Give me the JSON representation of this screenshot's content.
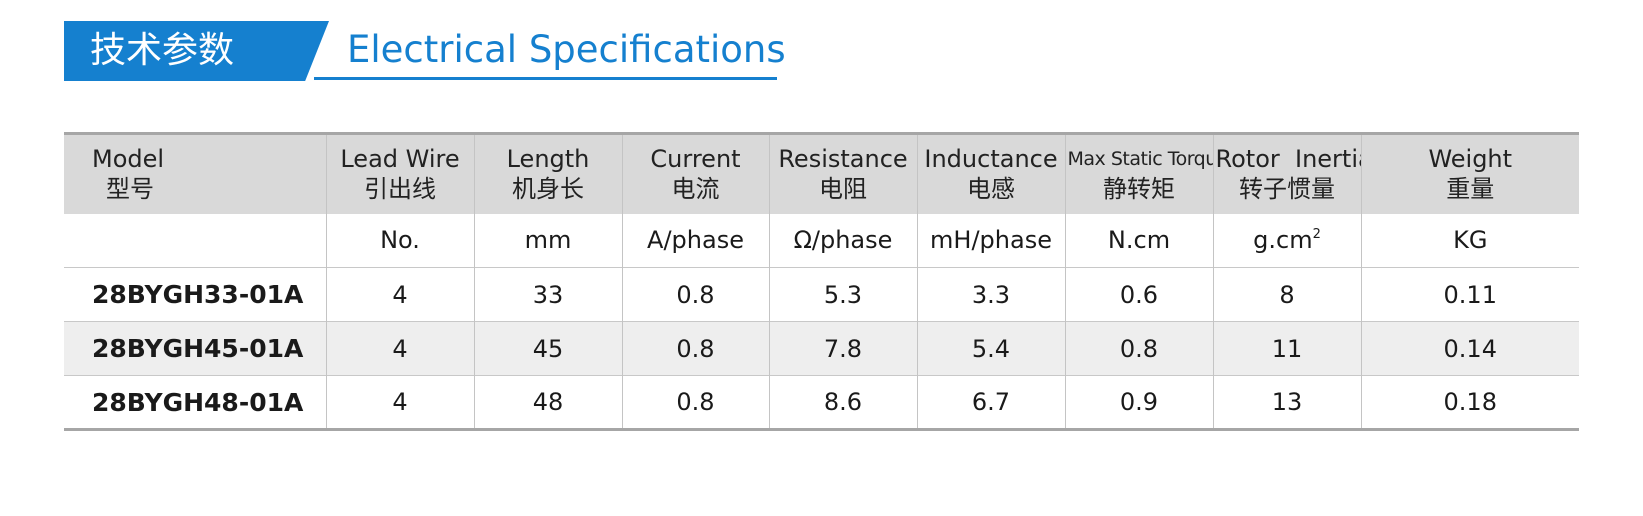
{
  "title": {
    "cn": "技术参数",
    "en": "Electrical Specifications"
  },
  "columns": [
    {
      "en": "Model",
      "cn": "型号",
      "unit": ""
    },
    {
      "en": "Lead Wire",
      "cn": "引出线",
      "unit": "No."
    },
    {
      "en": "Length",
      "cn": "机身长",
      "unit": "mm"
    },
    {
      "en": "Current",
      "cn": "电流",
      "unit": "A/phase"
    },
    {
      "en": "Resistance",
      "cn": "电阻",
      "unit": "Ω/phase"
    },
    {
      "en": "Inductance",
      "cn": "电感",
      "unit": "mH/phase"
    },
    {
      "en": "Max Static Torque",
      "cn": "静转矩",
      "unit": "N.cm"
    },
    {
      "en": "Rotor  Inertia",
      "cn": "转子惯量",
      "unit": "g.cm",
      "unit_sup": "2"
    },
    {
      "en": "Weight",
      "cn": "重量",
      "unit": "KG"
    }
  ],
  "rows": [
    [
      "28BYGH33-01A",
      "4",
      "33",
      "0.8",
      "5.3",
      "3.3",
      "0.6",
      "8",
      "0.11"
    ],
    [
      "28BYGH45-01A",
      "4",
      "45",
      "0.8",
      "7.8",
      "5.4",
      "0.8",
      "11",
      "0.14"
    ],
    [
      "28BYGH48-01A",
      "4",
      "48",
      "0.8",
      "8.6",
      "6.7",
      "0.9",
      "13",
      "0.18"
    ]
  ],
  "colors": {
    "accent": "#1580cf",
    "header_bg": "#d9d9d9",
    "stripe_bg": "#eeeeee"
  }
}
